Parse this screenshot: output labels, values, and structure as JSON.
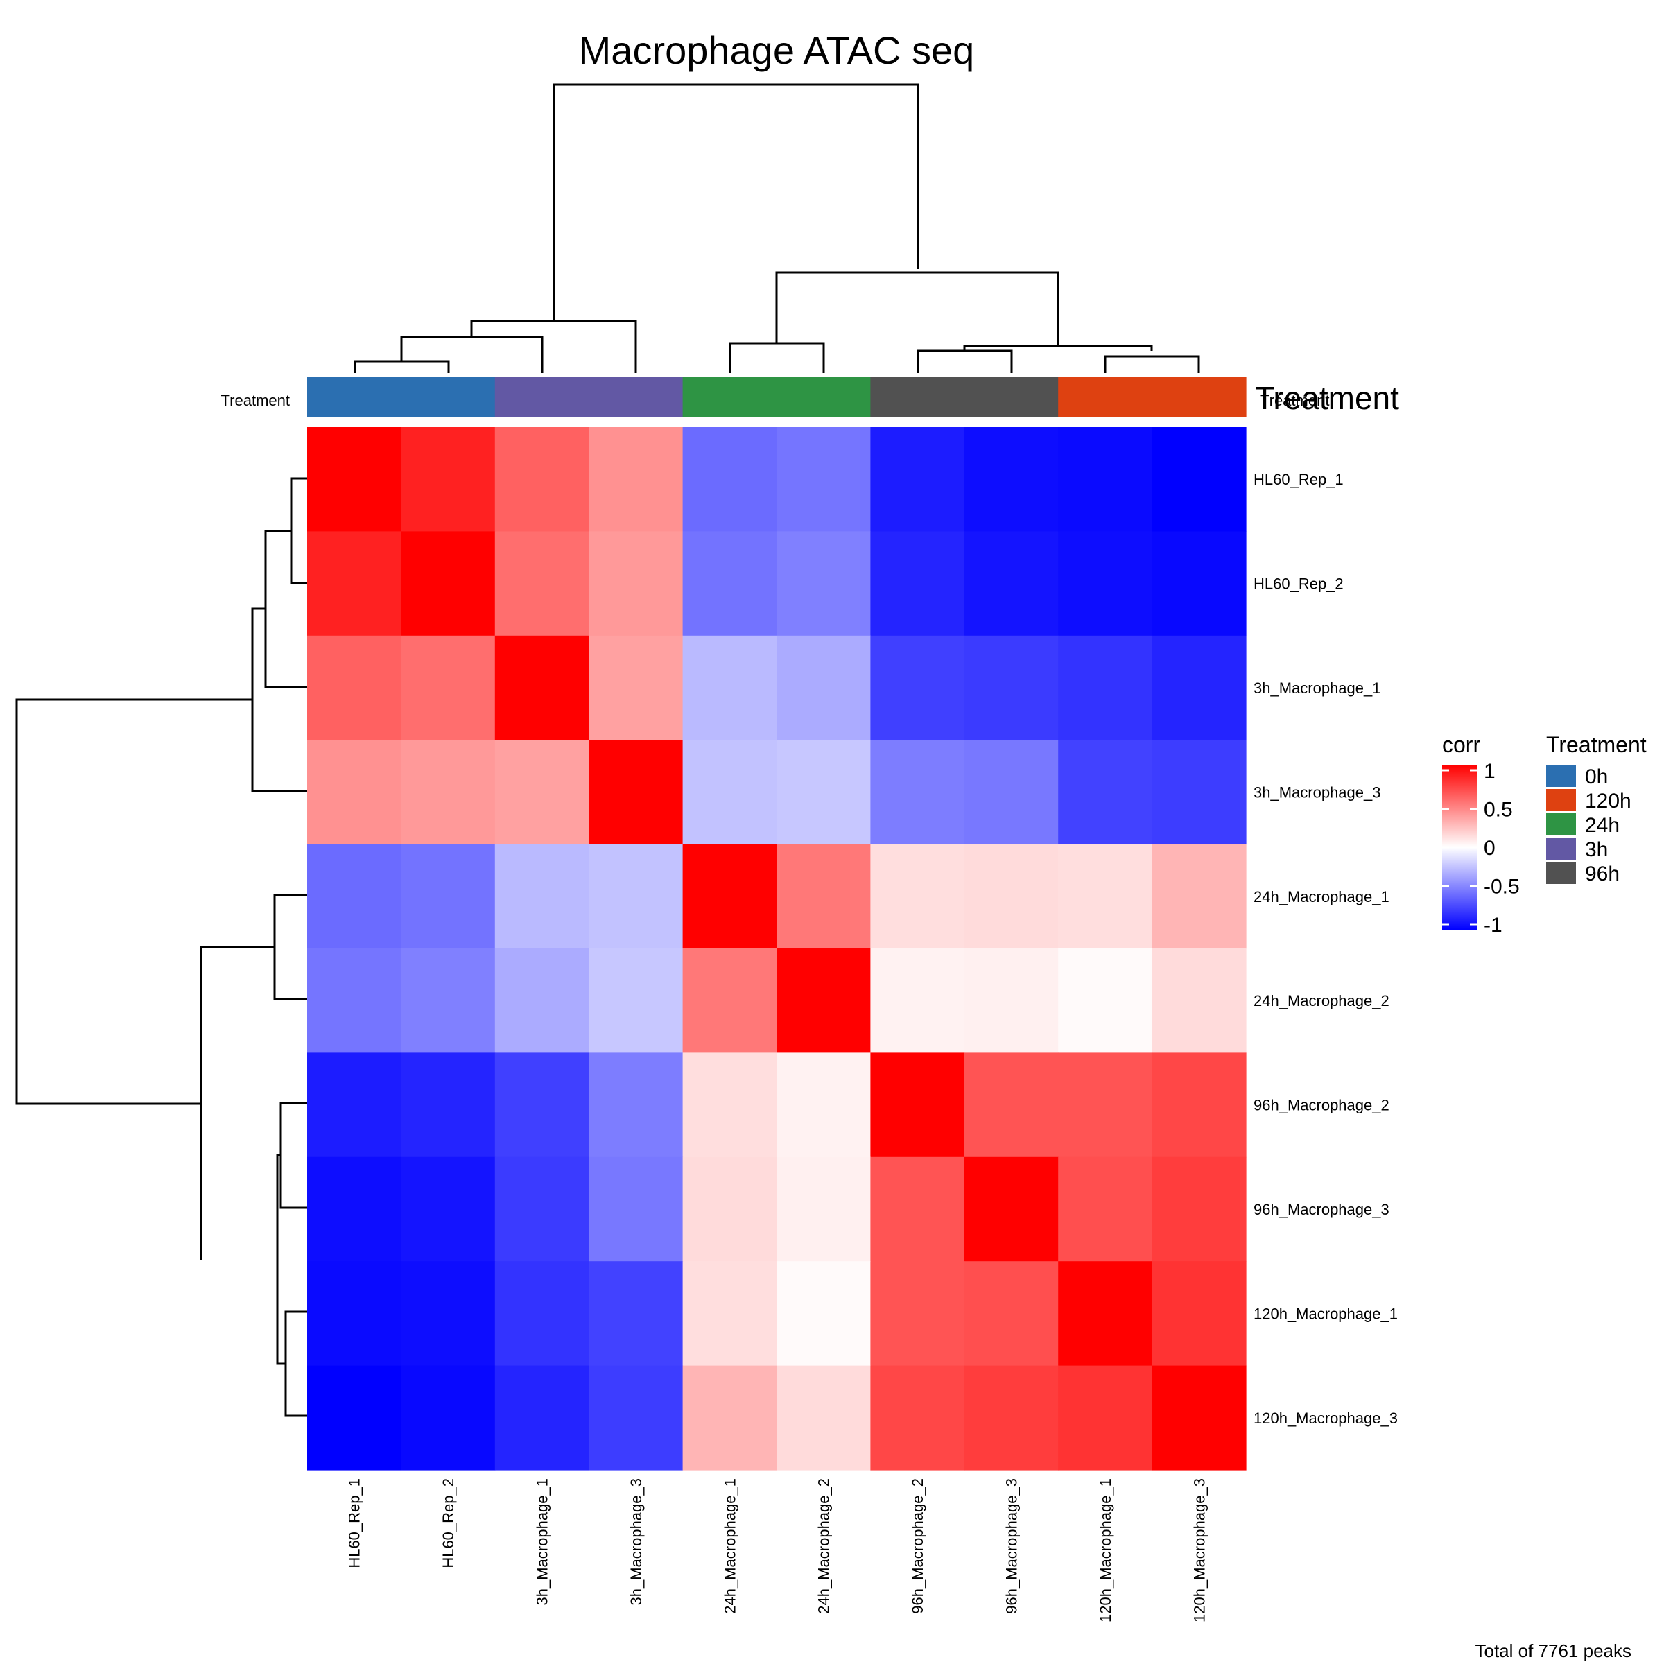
{
  "chart_data": {
    "type": "heatmap",
    "title": "Macrophage ATAC seq",
    "samples": [
      "HL60_Rep_1",
      "HL60_Rep_2",
      "3h_Macrophage_1",
      "3h_Macrophage_3",
      "24h_Macrophage_1",
      "24h_Macrophage_2",
      "96h_Macrophage_2",
      "96h_Macrophage_3",
      "120h_Macrophage_1",
      "120h_Macrophage_3"
    ],
    "sample_treatment": [
      "0h",
      "0h",
      "3h",
      "3h",
      "24h",
      "24h",
      "96h",
      "96h",
      "120h",
      "120h"
    ],
    "values": [
      [
        1.0,
        0.87,
        0.62,
        0.43,
        -0.58,
        -0.54,
        -0.89,
        -0.95,
        -0.96,
        -1.0
      ],
      [
        0.87,
        1.0,
        0.57,
        0.4,
        -0.55,
        -0.5,
        -0.86,
        -0.92,
        -0.95,
        -0.97
      ],
      [
        0.62,
        0.57,
        1.0,
        0.37,
        -0.27,
        -0.33,
        -0.75,
        -0.77,
        -0.8,
        -0.86
      ],
      [
        0.43,
        0.4,
        0.37,
        1.0,
        -0.24,
        -0.22,
        -0.51,
        -0.53,
        -0.74,
        -0.76
      ],
      [
        -0.58,
        -0.55,
        -0.27,
        -0.24,
        1.0,
        0.53,
        0.13,
        0.14,
        0.13,
        0.29
      ],
      [
        -0.54,
        -0.5,
        -0.33,
        -0.22,
        0.53,
        1.0,
        0.05,
        0.06,
        0.02,
        0.14
      ],
      [
        -0.89,
        -0.86,
        -0.75,
        -0.51,
        0.13,
        0.05,
        1.0,
        0.67,
        0.67,
        0.72
      ],
      [
        -0.95,
        -0.92,
        -0.77,
        -0.53,
        0.14,
        0.06,
        0.67,
        1.0,
        0.69,
        0.76
      ],
      [
        -0.96,
        -0.95,
        -0.8,
        -0.74,
        0.13,
        0.02,
        0.67,
        0.69,
        1.0,
        0.8
      ],
      [
        -1.0,
        -0.97,
        -0.86,
        -0.76,
        0.29,
        0.14,
        0.72,
        0.76,
        0.8,
        1.0
      ]
    ],
    "color_scale": {
      "low": "#0000FF",
      "mid": "#FFFFFF",
      "high": "#FF0000"
    },
    "legend_corr": {
      "title": "corr",
      "ticks": [
        "1",
        "0.5",
        "0",
        "-0.5",
        "-1"
      ]
    },
    "legend_treatment": {
      "title": "Treatment",
      "items": [
        {
          "label": "0h",
          "color": "#2B6FB1"
        },
        {
          "label": "120h",
          "color": "#DE4111"
        },
        {
          "label": "24h",
          "color": "#2E9444"
        },
        {
          "label": "3h",
          "color": "#6258A4"
        },
        {
          "label": "96h",
          "color": "#515151"
        }
      ]
    },
    "annotation_label_left": "Treatment",
    "annotation_label_right": "Treatment",
    "annotation_label_overlap": "Treatment",
    "legend_placement": "right",
    "footer": "Total of  7761 peaks"
  }
}
